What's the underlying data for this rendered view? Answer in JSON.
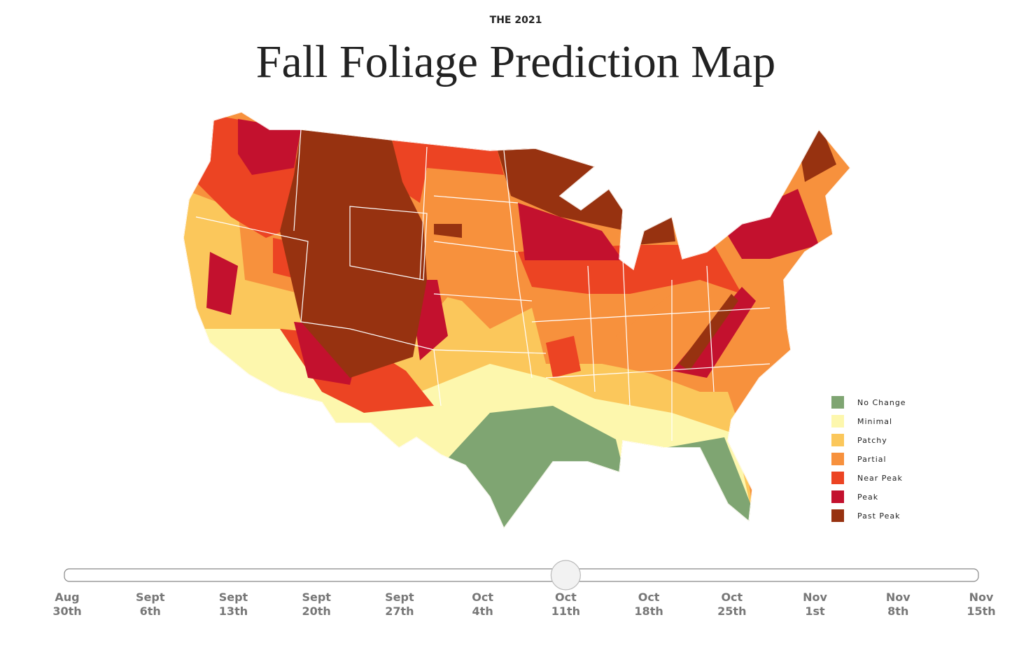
{
  "header": {
    "kicker": "THE 2021",
    "title": "Fall Foliage Prediction Map"
  },
  "legend": [
    {
      "label": "No Change",
      "color": "#7fa572"
    },
    {
      "label": "Minimal",
      "color": "#fdf7ad"
    },
    {
      "label": "Patchy",
      "color": "#fbc75b"
    },
    {
      "label": "Partial",
      "color": "#f7913d"
    },
    {
      "label": "Near Peak",
      "color": "#ec4423"
    },
    {
      "label": "Peak",
      "color": "#c3112e"
    },
    {
      "label": "Past Peak",
      "color": "#973210"
    }
  ],
  "slider": {
    "selected": 6,
    "dates": [
      {
        "month": "Aug",
        "day": "30th"
      },
      {
        "month": "Sept",
        "day": "6th"
      },
      {
        "month": "Sept",
        "day": "13th"
      },
      {
        "month": "Sept",
        "day": "20th"
      },
      {
        "month": "Sept",
        "day": "27th"
      },
      {
        "month": "Oct",
        "day": "4th"
      },
      {
        "month": "Oct",
        "day": "11th"
      },
      {
        "month": "Oct",
        "day": "18th"
      },
      {
        "month": "Oct",
        "day": "25th"
      },
      {
        "month": "Nov",
        "day": "1st"
      },
      {
        "month": "Nov",
        "day": "8th"
      },
      {
        "month": "Nov",
        "day": "15th"
      }
    ]
  }
}
